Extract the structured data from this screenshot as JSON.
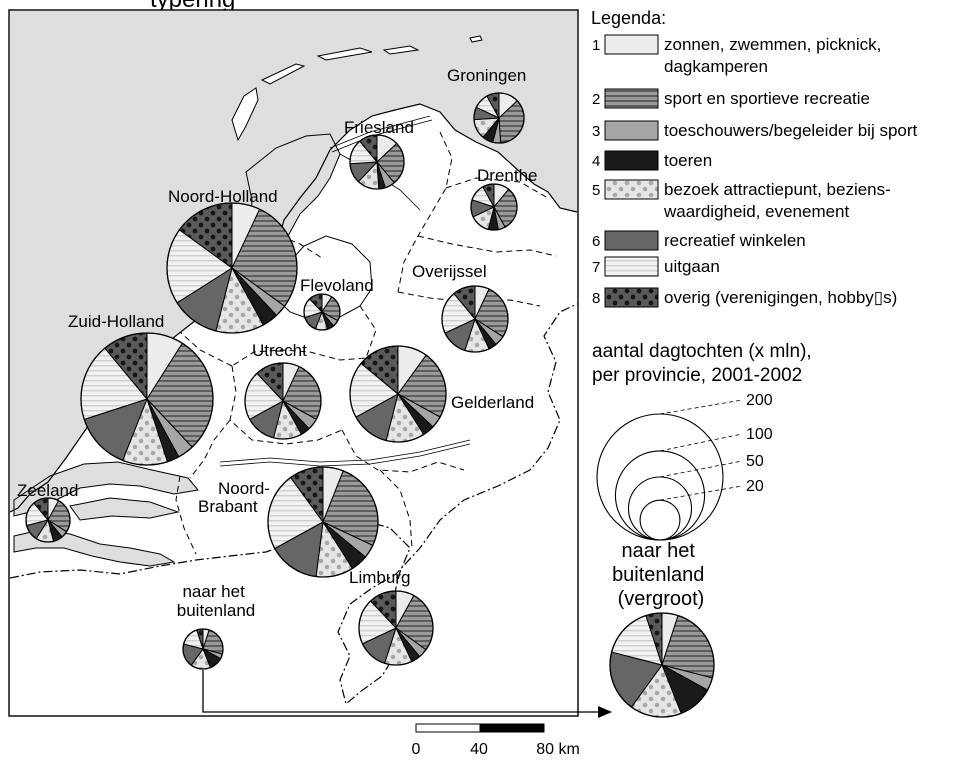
{
  "title": "typering",
  "legend": {
    "heading": "Legenda:",
    "items": [
      {
        "num": "1",
        "pattern": "light",
        "lines": [
          "zonnen, zwemmen, picknick,",
          "dagkamperen"
        ]
      },
      {
        "num": "2",
        "pattern": "hstripes",
        "lines": [
          "sport en sportieve recreatie"
        ]
      },
      {
        "num": "3",
        "pattern": "midgray",
        "lines": [
          "toeschouwers/begeleider bij sport"
        ]
      },
      {
        "num": "4",
        "pattern": "black",
        "lines": [
          "toeren"
        ]
      },
      {
        "num": "5",
        "pattern": "dots",
        "lines": [
          "bezoek attractiepunt, beziens-",
          "waardigheid, evenement"
        ]
      },
      {
        "num": "6",
        "pattern": "darkgray",
        "lines": [
          "recreatief winkelen"
        ]
      },
      {
        "num": "7",
        "pattern": "lightstripes",
        "lines": [
          "uitgaan"
        ]
      },
      {
        "num": "8",
        "pattern": "darkdots",
        "lines": [
          "overig (verenigingen, hobby▯s)"
        ]
      }
    ],
    "size_heading": [
      "aantal dagtochten (x mln),",
      "per provincie, 2001-2002"
    ],
    "size_values": [
      "200",
      "100",
      "50",
      "20"
    ],
    "abroad_label": [
      "naar het",
      "buitenland",
      "(vergroot)"
    ]
  },
  "scalebar": {
    "labels": [
      "0",
      "40",
      "80 km"
    ]
  },
  "provinces": [
    {
      "name": "Groningen",
      "label": [
        "Groningen"
      ],
      "shares": [
        13,
        36,
        5,
        7,
        13,
        8,
        10,
        8
      ]
    },
    {
      "name": "Friesland",
      "label": [
        "Friesland"
      ],
      "shares": [
        13,
        26,
        6,
        4,
        13,
        12,
        15,
        11
      ]
    },
    {
      "name": "Drenthe",
      "label": [
        "Drenthe"
      ],
      "shares": [
        11,
        31,
        5,
        7,
        14,
        12,
        12,
        8
      ]
    },
    {
      "name": "Noord-Holland",
      "label": [
        "Noord-Holland"
      ],
      "shares": [
        7,
        28,
        3,
        4,
        12,
        12,
        19,
        15
      ]
    },
    {
      "name": "Flevoland",
      "label": [
        "Flevoland"
      ],
      "shares": [
        9,
        24,
        6,
        6,
        11,
        14,
        18,
        12
      ]
    },
    {
      "name": "Overijssel",
      "label": [
        "Overijssel"
      ],
      "shares": [
        7,
        27,
        5,
        4,
        12,
        13,
        21,
        11
      ]
    },
    {
      "name": "Zuid-Holland",
      "label": [
        "Zuid-Holland"
      ],
      "shares": [
        9,
        29,
        4,
        3,
        11,
        14,
        19,
        11
      ]
    },
    {
      "name": "Utrecht",
      "label": [
        "Utrecht"
      ],
      "shares": [
        7,
        26,
        5,
        4,
        12,
        13,
        21,
        12
      ]
    },
    {
      "name": "Gelderland",
      "label": [
        "Gelderland"
      ],
      "shares": [
        10,
        23,
        4,
        4,
        13,
        13,
        19,
        14
      ]
    },
    {
      "name": "Zeeland",
      "label": [
        "Zeeland"
      ],
      "shares": [
        8,
        26,
        5,
        7,
        13,
        12,
        18,
        11
      ]
    },
    {
      "name": "Noord-Brabant",
      "label": [
        "Noord-",
        "Brabant"
      ],
      "shares": [
        6,
        26,
        4,
        5,
        11,
        15,
        23,
        10
      ]
    },
    {
      "name": "Limburg",
      "label": [
        "Limburg"
      ],
      "shares": [
        8,
        27,
        4,
        4,
        12,
        13,
        20,
        12
      ]
    },
    {
      "name": "buitenland",
      "label": [
        "naar het",
        "buitenland"
      ],
      "shares": [
        5,
        24,
        4,
        11,
        16,
        19,
        16,
        5
      ]
    }
  ]
}
